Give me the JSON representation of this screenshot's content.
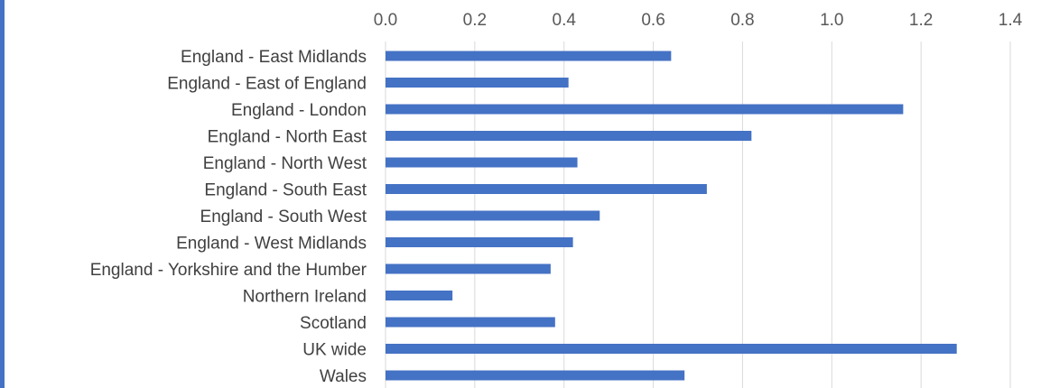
{
  "chart_data": {
    "type": "bar",
    "orientation": "horizontal",
    "categories": [
      "England - East Midlands",
      "England - East of England",
      "England - London",
      "England - North East",
      "England - North West",
      "England - South East",
      "England - South West",
      "England - West Midlands",
      "England - Yorkshire and the Humber",
      "Northern Ireland",
      "Scotland",
      "UK wide",
      "Wales"
    ],
    "values": [
      0.64,
      0.41,
      1.16,
      0.82,
      0.43,
      0.72,
      0.48,
      0.42,
      0.37,
      0.15,
      0.38,
      1.28,
      0.67
    ],
    "xlim": [
      0,
      1.4
    ],
    "xticks": [
      "0.0",
      "0.2",
      "0.4",
      "0.6",
      "0.8",
      "1.0",
      "1.2",
      "1.4"
    ],
    "xaxis_position": "top",
    "grid": true,
    "bar_color": "#4472c4",
    "grid_color": "#d9d9d9",
    "title": "",
    "xlabel": "",
    "ylabel": ""
  }
}
